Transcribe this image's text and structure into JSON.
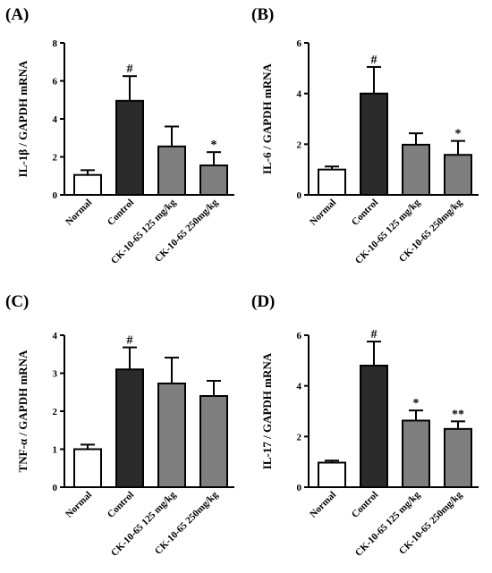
{
  "chart_data": [
    {
      "type": "bar",
      "panel": "(A)",
      "ylabel": "IL-1β / GAPDH mRNA",
      "categories": [
        "Normal",
        "Control",
        "CK-10-65 125 mg/kg",
        "CK-10-65 250mg/kg"
      ],
      "values": [
        1.05,
        4.95,
        2.55,
        1.55
      ],
      "errors": [
        0.25,
        1.3,
        1.05,
        0.7
      ],
      "colors": [
        "#ffffff",
        "#2b2b2b",
        "#7f7f7f",
        "#7f7f7f"
      ],
      "annotations": [
        "",
        "#",
        "",
        "*"
      ],
      "ylim": [
        0,
        8
      ],
      "yticks": [
        0,
        2,
        4,
        6,
        8
      ]
    },
    {
      "type": "bar",
      "panel": "(B)",
      "ylabel": "IL-6 / GAPDH mRNA",
      "categories": [
        "Normal",
        "Control",
        "CK-10-65 125 mg/kg",
        "CK-10-65 250mg/kg"
      ],
      "values": [
        1.0,
        4.0,
        1.98,
        1.58
      ],
      "errors": [
        0.12,
        1.05,
        0.45,
        0.55
      ],
      "colors": [
        "#ffffff",
        "#2b2b2b",
        "#7f7f7f",
        "#7f7f7f"
      ],
      "annotations": [
        "",
        "#",
        "",
        "*"
      ],
      "ylim": [
        0,
        6
      ],
      "yticks": [
        0,
        2,
        4,
        6
      ]
    },
    {
      "type": "bar",
      "panel": "(C)",
      "ylabel": "TNF-α / GAPDH mRNA",
      "categories": [
        "Normal",
        "Control",
        "CK-10-65 125 mg/kg",
        "CK-10-65 250mg/kg"
      ],
      "values": [
        1.0,
        3.1,
        2.73,
        2.4
      ],
      "errors": [
        0.12,
        0.58,
        0.68,
        0.4
      ],
      "colors": [
        "#ffffff",
        "#2b2b2b",
        "#7f7f7f",
        "#7f7f7f"
      ],
      "annotations": [
        "",
        "#",
        "",
        ""
      ],
      "ylim": [
        0,
        4
      ],
      "yticks": [
        0,
        1,
        2,
        3,
        4
      ]
    },
    {
      "type": "bar",
      "panel": "(D)",
      "ylabel": "IL-17 / GAPDH mRNA",
      "categories": [
        "Normal",
        "Control",
        "CK-10-65 125 mg/kg",
        "CK-10-65 250mg/kg"
      ],
      "values": [
        0.97,
        4.8,
        2.63,
        2.3
      ],
      "errors": [
        0.08,
        0.95,
        0.4,
        0.3
      ],
      "colors": [
        "#ffffff",
        "#2b2b2b",
        "#7f7f7f",
        "#7f7f7f"
      ],
      "annotations": [
        "",
        "#",
        "*",
        "**"
      ],
      "ylim": [
        0,
        6
      ],
      "yticks": [
        0,
        2,
        4,
        6
      ]
    }
  ]
}
